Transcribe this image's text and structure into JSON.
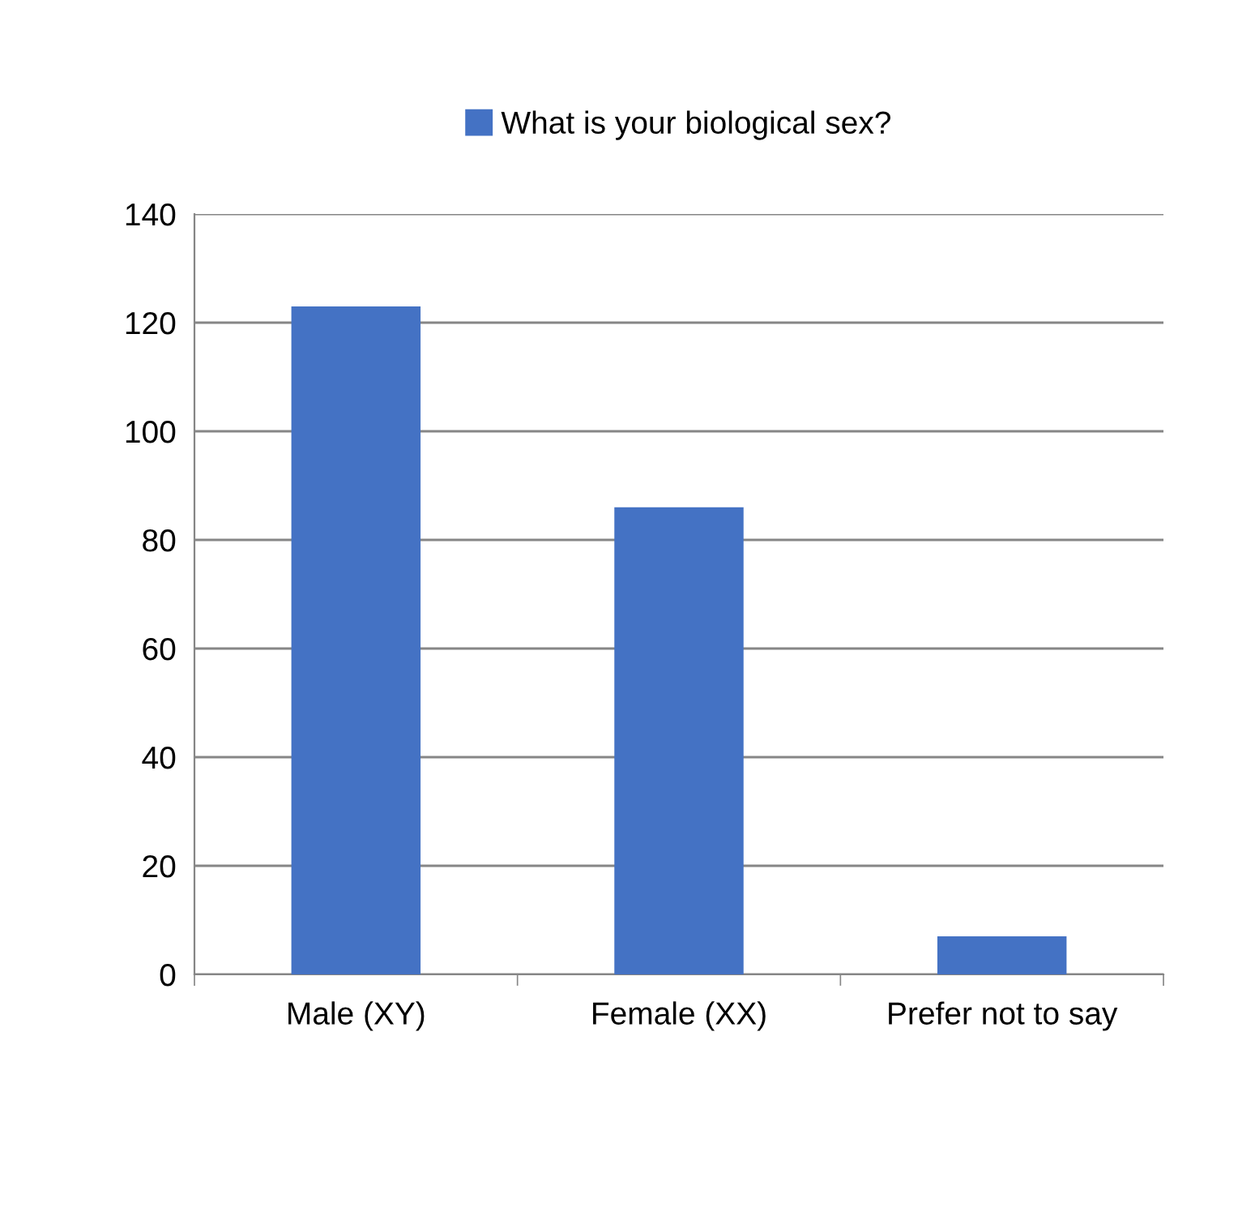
{
  "chart_data": {
    "type": "bar",
    "categories": [
      "Male (XY)",
      "Female (XX)",
      "Prefer not to say"
    ],
    "series": [
      {
        "name": "What is your biological sex?",
        "color": "#4472c4",
        "values": [
          123,
          86,
          7
        ]
      }
    ],
    "ylim": [
      0,
      140
    ],
    "yticks": [
      0,
      20,
      40,
      60,
      80,
      100,
      120,
      140
    ],
    "grid": "y",
    "legend": "top"
  }
}
